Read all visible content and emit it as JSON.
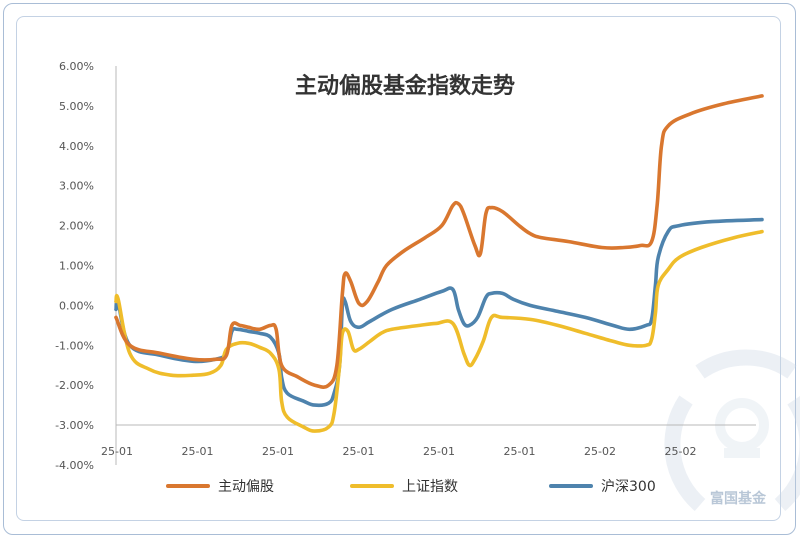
{
  "chart_data": {
    "type": "line",
    "title": "主动偏股基金指数走势",
    "xlabel": "",
    "ylabel": "",
    "y_ticks": [
      "6.00%",
      "5.00%",
      "4.00%",
      "3.00%",
      "2.00%",
      "1.00%",
      "0.00%",
      "-1.00%",
      "-2.00%",
      "-3.00%",
      "-4.00%"
    ],
    "x_ticks": [
      "25-01",
      "25-01",
      "25-01",
      "25-01",
      "25-01",
      "25-01",
      "25-02",
      "25-02"
    ],
    "ylim": [
      -4.0,
      6.0
    ],
    "grid": false,
    "legend_position": "bottom",
    "series": [
      {
        "name": "主动偏股",
        "color": "#d9772f",
        "points": [
          [
            0.0,
            -0.3
          ],
          [
            2.5,
            -1.0
          ],
          [
            8,
            -1.2
          ],
          [
            14,
            -1.35
          ],
          [
            18,
            -1.35
          ],
          [
            20,
            -1.25
          ],
          [
            21,
            -0.5
          ],
          [
            22.5,
            -0.5
          ],
          [
            24,
            -0.55
          ],
          [
            26,
            -0.6
          ],
          [
            28,
            -0.5
          ],
          [
            29,
            -0.6
          ],
          [
            30,
            -1.5
          ],
          [
            33,
            -1.8
          ],
          [
            36,
            -2.0
          ],
          [
            38.5,
            -2.0
          ],
          [
            40,
            -1.5
          ],
          [
            41,
            0.3
          ],
          [
            41.5,
            0.8
          ],
          [
            42.5,
            0.6
          ],
          [
            44,
            0.05
          ],
          [
            45.5,
            0.1
          ],
          [
            47.5,
            0.6
          ],
          [
            49,
            1.0
          ],
          [
            52,
            1.35
          ],
          [
            56,
            1.7
          ],
          [
            59,
            2.0
          ],
          [
            61,
            2.5
          ],
          [
            62,
            2.55
          ],
          [
            63,
            2.3
          ],
          [
            65,
            1.5
          ],
          [
            66,
            1.3
          ],
          [
            67,
            2.3
          ],
          [
            68,
            2.45
          ],
          [
            70,
            2.35
          ],
          [
            73,
            2.0
          ],
          [
            75,
            1.8
          ],
          [
            77,
            1.7
          ],
          [
            82,
            1.6
          ],
          [
            88,
            1.45
          ],
          [
            92,
            1.45
          ],
          [
            95,
            1.5
          ],
          [
            97,
            1.6
          ],
          [
            98,
            2.5
          ],
          [
            98.8,
            4.0
          ],
          [
            100,
            4.5
          ],
          [
            104,
            4.8
          ],
          [
            110,
            5.05
          ],
          [
            117,
            5.25
          ]
        ]
      },
      {
        "name": "上证指数",
        "color": "#efbd2b",
        "points": [
          [
            0.0,
            0.1
          ],
          [
            0.4,
            0.15
          ],
          [
            2.5,
            -1.2
          ],
          [
            6,
            -1.6
          ],
          [
            10,
            -1.75
          ],
          [
            14,
            -1.75
          ],
          [
            17,
            -1.7
          ],
          [
            19,
            -1.5
          ],
          [
            20,
            -1.1
          ],
          [
            22,
            -0.95
          ],
          [
            24,
            -0.95
          ],
          [
            26,
            -1.05
          ],
          [
            28,
            -1.2
          ],
          [
            29.5,
            -1.6
          ],
          [
            30,
            -2.4
          ],
          [
            31,
            -2.8
          ],
          [
            34,
            -3.05
          ],
          [
            36,
            -3.15
          ],
          [
            38.5,
            -3.05
          ],
          [
            39.5,
            -2.7
          ],
          [
            40.5,
            -1.5
          ],
          [
            41,
            -0.7
          ],
          [
            42,
            -0.65
          ],
          [
            43,
            -1.1
          ],
          [
            44,
            -1.1
          ],
          [
            46,
            -0.9
          ],
          [
            48,
            -0.7
          ],
          [
            50,
            -0.6
          ],
          [
            55,
            -0.5
          ],
          [
            58,
            -0.45
          ],
          [
            61,
            -0.45
          ],
          [
            63,
            -1.2
          ],
          [
            64,
            -1.5
          ],
          [
            65,
            -1.35
          ],
          [
            66.5,
            -0.9
          ],
          [
            68,
            -0.3
          ],
          [
            70,
            -0.3
          ],
          [
            75,
            -0.35
          ],
          [
            80,
            -0.5
          ],
          [
            85,
            -0.7
          ],
          [
            90,
            -0.9
          ],
          [
            93,
            -1.0
          ],
          [
            96,
            -1.0
          ],
          [
            97,
            -0.85
          ],
          [
            97.7,
            -0.2
          ],
          [
            98.2,
            0.5
          ],
          [
            100,
            0.9
          ],
          [
            102,
            1.2
          ],
          [
            106,
            1.45
          ],
          [
            112,
            1.7
          ],
          [
            117,
            1.85
          ]
        ]
      },
      {
        "name": "沪深300",
        "color": "#4e83ad",
        "points": [
          [
            0.0,
            -0.1
          ],
          [
            0.4,
            0.05
          ],
          [
            2.5,
            -1.0
          ],
          [
            8,
            -1.25
          ],
          [
            14,
            -1.4
          ],
          [
            18,
            -1.35
          ],
          [
            20,
            -1.2
          ],
          [
            21,
            -0.65
          ],
          [
            22,
            -0.6
          ],
          [
            24,
            -0.65
          ],
          [
            26,
            -0.7
          ],
          [
            28,
            -0.8
          ],
          [
            29.5,
            -1.2
          ],
          [
            30,
            -1.8
          ],
          [
            31,
            -2.2
          ],
          [
            34,
            -2.4
          ],
          [
            36,
            -2.5
          ],
          [
            38.5,
            -2.45
          ],
          [
            39.5,
            -2.2
          ],
          [
            40.5,
            -1.5
          ],
          [
            41,
            0.0
          ],
          [
            41.5,
            0.1
          ],
          [
            42.5,
            -0.4
          ],
          [
            44,
            -0.55
          ],
          [
            46,
            -0.4
          ],
          [
            50,
            -0.1
          ],
          [
            55,
            0.15
          ],
          [
            59,
            0.35
          ],
          [
            61,
            0.4
          ],
          [
            62,
            -0.1
          ],
          [
            63,
            -0.45
          ],
          [
            64,
            -0.5
          ],
          [
            65.5,
            -0.3
          ],
          [
            67,
            0.2
          ],
          [
            68,
            0.3
          ],
          [
            70,
            0.3
          ],
          [
            72,
            0.15
          ],
          [
            75,
            0.0
          ],
          [
            80,
            -0.15
          ],
          [
            85,
            -0.3
          ],
          [
            90,
            -0.5
          ],
          [
            93,
            -0.6
          ],
          [
            96,
            -0.5
          ],
          [
            97,
            -0.35
          ],
          [
            97.7,
            0.5
          ],
          [
            98.2,
            1.2
          ],
          [
            100,
            1.85
          ],
          [
            102,
            2.0
          ],
          [
            108,
            2.1
          ],
          [
            117,
            2.15
          ]
        ]
      }
    ]
  },
  "watermark": {
    "text": "富国基金",
    "logo_icon": "fuguo-logo-icon"
  }
}
